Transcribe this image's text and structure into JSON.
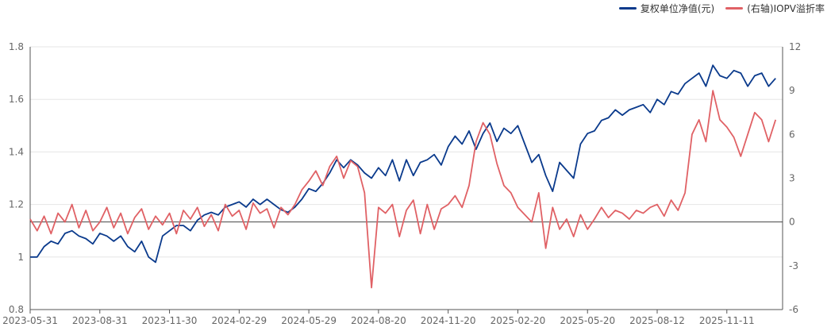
{
  "chart_data": {
    "type": "line",
    "legend": {
      "placement": "top-right"
    },
    "colors": {
      "nav": "#0a3a8c",
      "premium": "#e06165",
      "grid": "#e6e6e6",
      "axis": "#666666"
    },
    "x_ticks": [
      "2023-05-31",
      "2023-08-31",
      "2023-11-30",
      "2024-02-29",
      "2024-05-29",
      "2024-08-20",
      "2024-11-20",
      "2025-02-20",
      "2025-05-20",
      "2025-08-12",
      "2025-11-11"
    ],
    "x_tick_index": [
      0,
      1,
      2,
      3,
      4,
      5,
      6,
      7,
      8,
      9,
      10
    ],
    "x_range": [
      0,
      10.8
    ],
    "y_left": {
      "ticks": [
        "0.8",
        "1",
        "1.2",
        "1.4",
        "1.6",
        "1.8"
      ],
      "min": 0.8,
      "max": 1.8
    },
    "y_right": {
      "ticks": [
        "-6",
        "-3",
        "0",
        "3",
        "6",
        "9",
        "12"
      ],
      "min": -6,
      "max": 12
    },
    "series": [
      {
        "name": "复权单位净值(元)",
        "axis": "left",
        "x": [
          0,
          0.1,
          0.2,
          0.3,
          0.4,
          0.5,
          0.6,
          0.7,
          0.8,
          0.9,
          1,
          1.1,
          1.2,
          1.3,
          1.4,
          1.5,
          1.6,
          1.7,
          1.8,
          1.9,
          2,
          2.1,
          2.2,
          2.3,
          2.4,
          2.5,
          2.6,
          2.7,
          2.8,
          2.9,
          3,
          3.1,
          3.2,
          3.3,
          3.4,
          3.5,
          3.6,
          3.7,
          3.8,
          3.9,
          4,
          4.1,
          4.2,
          4.3,
          4.4,
          4.5,
          4.6,
          4.7,
          4.8,
          4.9,
          5,
          5.1,
          5.2,
          5.3,
          5.4,
          5.5,
          5.6,
          5.7,
          5.8,
          5.9,
          6,
          6.1,
          6.2,
          6.3,
          6.4,
          6.5,
          6.6,
          6.7,
          6.8,
          6.9,
          7,
          7.1,
          7.2,
          7.3,
          7.4,
          7.5,
          7.6,
          7.7,
          7.8,
          7.9,
          8,
          8.1,
          8.2,
          8.3,
          8.4,
          8.5,
          8.6,
          8.7,
          8.8,
          8.9,
          9,
          9.1,
          9.2,
          9.3,
          9.4,
          9.5,
          9.6,
          9.7,
          9.8,
          9.9,
          10,
          10.1,
          10.2,
          10.3,
          10.4,
          10.5,
          10.6,
          10.7
        ],
        "values": [
          1.0,
          1.0,
          1.04,
          1.06,
          1.05,
          1.09,
          1.1,
          1.08,
          1.07,
          1.05,
          1.09,
          1.08,
          1.06,
          1.08,
          1.04,
          1.02,
          1.06,
          1.0,
          0.98,
          1.08,
          1.1,
          1.12,
          1.12,
          1.1,
          1.14,
          1.16,
          1.17,
          1.16,
          1.19,
          1.2,
          1.21,
          1.19,
          1.22,
          1.2,
          1.22,
          1.2,
          1.18,
          1.17,
          1.19,
          1.22,
          1.26,
          1.25,
          1.28,
          1.32,
          1.37,
          1.34,
          1.37,
          1.35,
          1.32,
          1.3,
          1.34,
          1.31,
          1.37,
          1.29,
          1.37,
          1.31,
          1.36,
          1.37,
          1.39,
          1.35,
          1.42,
          1.46,
          1.43,
          1.48,
          1.41,
          1.47,
          1.51,
          1.44,
          1.49,
          1.47,
          1.5,
          1.43,
          1.36,
          1.39,
          1.31,
          1.25,
          1.36,
          1.33,
          1.3,
          1.43,
          1.47,
          1.48,
          1.52,
          1.53,
          1.56,
          1.54,
          1.56,
          1.57,
          1.58,
          1.55,
          1.6,
          1.58,
          1.63,
          1.62,
          1.66,
          1.68,
          1.7,
          1.65,
          1.73,
          1.69,
          1.68,
          1.71,
          1.7,
          1.65,
          1.69,
          1.7,
          1.65,
          1.68
        ]
      },
      {
        "name": "(右轴)IOPV溢折率",
        "axis": "right",
        "x": [
          0,
          0.1,
          0.2,
          0.3,
          0.4,
          0.5,
          0.6,
          0.7,
          0.8,
          0.9,
          1,
          1.1,
          1.2,
          1.3,
          1.4,
          1.5,
          1.6,
          1.7,
          1.8,
          1.9,
          2,
          2.1,
          2.2,
          2.3,
          2.4,
          2.5,
          2.6,
          2.7,
          2.8,
          2.9,
          3,
          3.1,
          3.2,
          3.3,
          3.4,
          3.5,
          3.6,
          3.7,
          3.8,
          3.9,
          4,
          4.1,
          4.2,
          4.3,
          4.4,
          4.5,
          4.6,
          4.7,
          4.8,
          4.9,
          5,
          5.1,
          5.2,
          5.3,
          5.4,
          5.5,
          5.6,
          5.7,
          5.8,
          5.9,
          6,
          6.1,
          6.2,
          6.3,
          6.4,
          6.5,
          6.6,
          6.7,
          6.8,
          6.9,
          7,
          7.1,
          7.2,
          7.3,
          7.4,
          7.5,
          7.6,
          7.7,
          7.8,
          7.9,
          8,
          8.1,
          8.2,
          8.3,
          8.4,
          8.5,
          8.6,
          8.7,
          8.8,
          8.9,
          9,
          9.1,
          9.2,
          9.3,
          9.4,
          9.5,
          9.6,
          9.7,
          9.8,
          9.9,
          10,
          10.1,
          10.2,
          10.3,
          10.4,
          10.5,
          10.6,
          10.7
        ],
        "values": [
          0.2,
          -0.6,
          0.4,
          -0.8,
          0.6,
          0.0,
          1.2,
          -0.4,
          0.8,
          -0.6,
          0.0,
          1.0,
          -0.4,
          0.6,
          -0.8,
          0.3,
          0.9,
          -0.5,
          0.4,
          -0.2,
          0.6,
          -0.8,
          0.8,
          0.2,
          1.0,
          -0.3,
          0.5,
          -0.6,
          1.2,
          0.4,
          0.8,
          -0.5,
          1.3,
          0.6,
          0.9,
          -0.4,
          1.0,
          0.5,
          1.2,
          2.2,
          2.8,
          3.5,
          2.5,
          3.8,
          4.5,
          3.0,
          4.2,
          3.8,
          2.0,
          -4.5,
          1.0,
          0.6,
          1.2,
          -1.0,
          0.8,
          1.5,
          -0.8,
          1.2,
          -0.5,
          0.9,
          1.2,
          1.8,
          1.0,
          2.5,
          5.5,
          6.8,
          6.0,
          4.0,
          2.5,
          2.0,
          1.0,
          0.5,
          0.0,
          2.0,
          -1.8,
          1.0,
          -0.5,
          0.2,
          -1.0,
          0.5,
          -0.5,
          0.2,
          1.0,
          0.3,
          0.8,
          0.6,
          0.2,
          0.8,
          0.6,
          1.0,
          1.2,
          0.4,
          1.5,
          0.8,
          2.0,
          6.0,
          7.0,
          5.5,
          9.0,
          7.0,
          6.5,
          5.8,
          4.5,
          6.0,
          7.5,
          7.0,
          5.5,
          7.0
        ]
      }
    ]
  }
}
